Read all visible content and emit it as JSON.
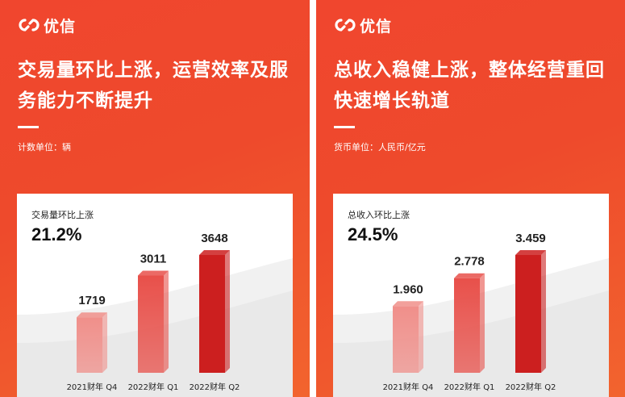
{
  "brand": {
    "name": "优信"
  },
  "panels": [
    {
      "headline": "交易量环比上涨，运营效率及服务能力不断提升",
      "unit": "计数单位：辆",
      "card_title": "交易量环比上涨",
      "card_value": "21.2%"
    },
    {
      "headline": "总收入稳健上涨，整体经营重回快速增长轨道",
      "unit": "货币单位：人民币/亿元",
      "card_title": "总收入环比上涨",
      "card_value": "24.5%"
    }
  ],
  "chart_data": [
    {
      "type": "bar",
      "categories": [
        "2021财年 Q4",
        "2022财年 Q1",
        "2022财年 Q2"
      ],
      "values": [
        1719,
        3011,
        3648
      ],
      "value_labels": [
        "1719",
        "3011",
        "3648"
      ],
      "ylim": [
        0,
        3648
      ]
    },
    {
      "type": "bar",
      "categories": [
        "2021财年 Q4",
        "2022财年 Q1",
        "2022财年 Q2"
      ],
      "values": [
        1.96,
        2.778,
        3.459
      ],
      "value_labels": [
        "1.960",
        "2.778",
        "3.459"
      ],
      "ylim": [
        0,
        3.459
      ]
    }
  ],
  "colors": {
    "background": "#f0462e",
    "bar_light": "#f08f8a",
    "bar_mid": "#e8504a",
    "bar_dark": "#cc1f1f"
  }
}
